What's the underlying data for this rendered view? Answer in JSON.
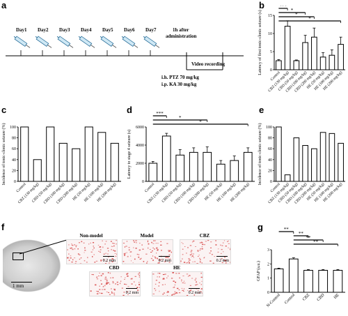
{
  "panels": {
    "a": {
      "letter": "a",
      "days": [
        "Day1",
        "Day2",
        "Day3",
        "Day4",
        "Day5",
        "Day6",
        "Day7"
      ],
      "after_label_1": "1h after",
      "after_label_2": "administration",
      "video_label": "Video recording",
      "ih_label": "i.h. PTZ 70 mg/kg",
      "ip_label": "i.p.  KA 30 mg/kg"
    },
    "b": {
      "letter": "b"
    },
    "c": {
      "letter": "c"
    },
    "d": {
      "letter": "d"
    },
    "e": {
      "letter": "e"
    },
    "f": {
      "letter": "f",
      "tiles": [
        {
          "title": "Non-model",
          "scale": "0.2 mm"
        },
        {
          "title": "Model",
          "scale": "0.2 mm"
        },
        {
          "title": "CBZ",
          "scale": "0.2 mm"
        },
        {
          "title": "CBD",
          "scale": "0.2 mm"
        },
        {
          "title": "HE",
          "scale": "0.2 mm"
        }
      ],
      "overview_scale": "1 mm"
    },
    "g": {
      "letter": "g"
    }
  },
  "chart_data": [
    {
      "id": "b",
      "type": "bar",
      "ylabel": "Latency of first tonic-clonic seizure (s)",
      "ylim": [
        0,
        15
      ],
      "yticks": [
        "0",
        "5",
        "10",
        "15"
      ],
      "categories": [
        "Control",
        "CBZ (130 mg/kg)",
        "CBD (50 mg/kg)",
        "CBD (100 mg/kg)",
        "CBD (200 mg/kg)",
        "HE (50 mg/kg)",
        "HE (100 mg/kg)",
        "HE (200 mg/kg)"
      ],
      "values": [
        2.5,
        12,
        2.5,
        7.5,
        9,
        3.5,
        4,
        7
      ],
      "errors": [
        0.3,
        1.5,
        0.2,
        2,
        2.5,
        1.2,
        1.5,
        2
      ],
      "sig": [
        {
          "from": 0,
          "to": 1,
          "label": "***"
        },
        {
          "from": 0,
          "to": 3,
          "label": "*"
        },
        {
          "from": 0,
          "to": 4,
          "label": "*"
        },
        {
          "from": 0,
          "to": 7,
          "label": "*"
        }
      ]
    },
    {
      "id": "c",
      "type": "bar",
      "ylabel": "Incidence of tonic-clonic seizure (%)",
      "ylim": [
        0,
        100
      ],
      "yticks": [
        "0",
        "20",
        "40",
        "60",
        "80",
        "100"
      ],
      "categories": [
        "Control",
        "CBZ (130 mg/kg)",
        "CBD (50 mg/kg)",
        "CBD (100 mg/kg)",
        "CBD (200 mg/kg)",
        "HE (50 mg/kg)",
        "HE (100 mg/kg)",
        "HE (200 mg/kg)"
      ],
      "values": [
        100,
        40,
        100,
        70,
        60,
        100,
        90,
        70
      ]
    },
    {
      "id": "d",
      "type": "bar",
      "ylabel": "Latency to stage 4 seizure (s)",
      "ylim": [
        0,
        6000
      ],
      "yticks": [
        "0",
        "2000",
        "4000",
        "6000"
      ],
      "categories": [
        "Control",
        "CBZ (130 mg/kg)",
        "CBD (50 mg/kg)",
        "CBD (100 mg/kg)",
        "CBD (200 mg/kg)",
        "HE (50 mg/kg)",
        "HE (100 mg/kg)",
        "HE (200 mg/kg)"
      ],
      "values": [
        2000,
        5000,
        2900,
        3200,
        3200,
        1900,
        2300,
        3200
      ],
      "errors": [
        200,
        300,
        600,
        500,
        600,
        400,
        500,
        500
      ],
      "sig": [
        {
          "from": 0,
          "to": 1,
          "label": "***"
        },
        {
          "from": 0,
          "to": 4,
          "label": "*"
        },
        {
          "from": 0,
          "to": 7,
          "label": "*"
        }
      ]
    },
    {
      "id": "e",
      "type": "bar",
      "ylabel": "Incidence of tonic-clonic seizure (%)",
      "ylim": [
        0,
        100
      ],
      "yticks": [
        "0",
        "20",
        "40",
        "60",
        "80",
        "100"
      ],
      "categories": [
        "Control",
        "CBZ (130 mg/kg)",
        "CBD (50 mg/kg)",
        "CBD (100 mg/kg)",
        "CBD (200 mg/kg)",
        "HE (50 mg/kg)",
        "HE (100 mg/kg)",
        "HE (200 mg/kg)"
      ],
      "values": [
        100,
        12,
        80,
        66,
        60,
        90,
        88,
        70
      ]
    },
    {
      "id": "g",
      "type": "bar",
      "ylabel": "GFAP (a.u.)",
      "ylim": [
        0,
        3
      ],
      "yticks": [
        "0",
        "1",
        "2",
        "3"
      ],
      "categories": [
        "N-Control",
        "Control",
        "CBZ",
        "CBD",
        "HE"
      ],
      "values": [
        1.65,
        2.35,
        1.55,
        1.55,
        1.55
      ],
      "errors": [
        0.05,
        0.08,
        0.05,
        0.05,
        0.05
      ],
      "sig": [
        {
          "from": 0,
          "to": 1,
          "label": "**"
        },
        {
          "from": 1,
          "to": 2,
          "label": "**"
        },
        {
          "from": 1,
          "to": 3,
          "label": "**"
        },
        {
          "from": 1,
          "to": 4,
          "label": "**"
        }
      ]
    }
  ]
}
